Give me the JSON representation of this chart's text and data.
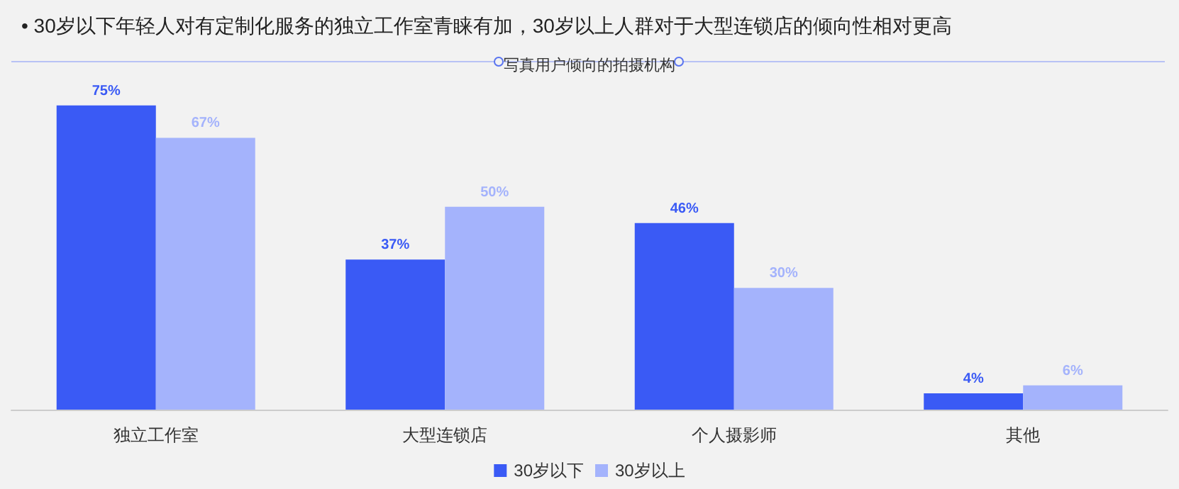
{
  "chart_data": {
    "type": "bar",
    "title": "• 30岁以下年轻人对有定制化服务的独立工作室青睐有加，30岁以上人群对于大型连锁店的倾向性相对更高",
    "subtitle": "写真用户倾向的拍摄机构",
    "categories": [
      "独立工作室",
      "大型连锁店",
      "个人摄影师",
      "其他"
    ],
    "series": [
      {
        "name": "30岁以下",
        "color": "#3a5af5",
        "values": [
          75,
          37,
          46,
          4
        ],
        "value_labels": [
          "75%",
          "37%",
          "46%",
          "4%"
        ]
      },
      {
        "name": "30岁以上",
        "color": "#a4b3fc",
        "values": [
          67,
          50,
          30,
          6
        ],
        "value_labels": [
          "67%",
          "50%",
          "30%",
          "6%"
        ]
      }
    ],
    "legend": "bottom"
  }
}
